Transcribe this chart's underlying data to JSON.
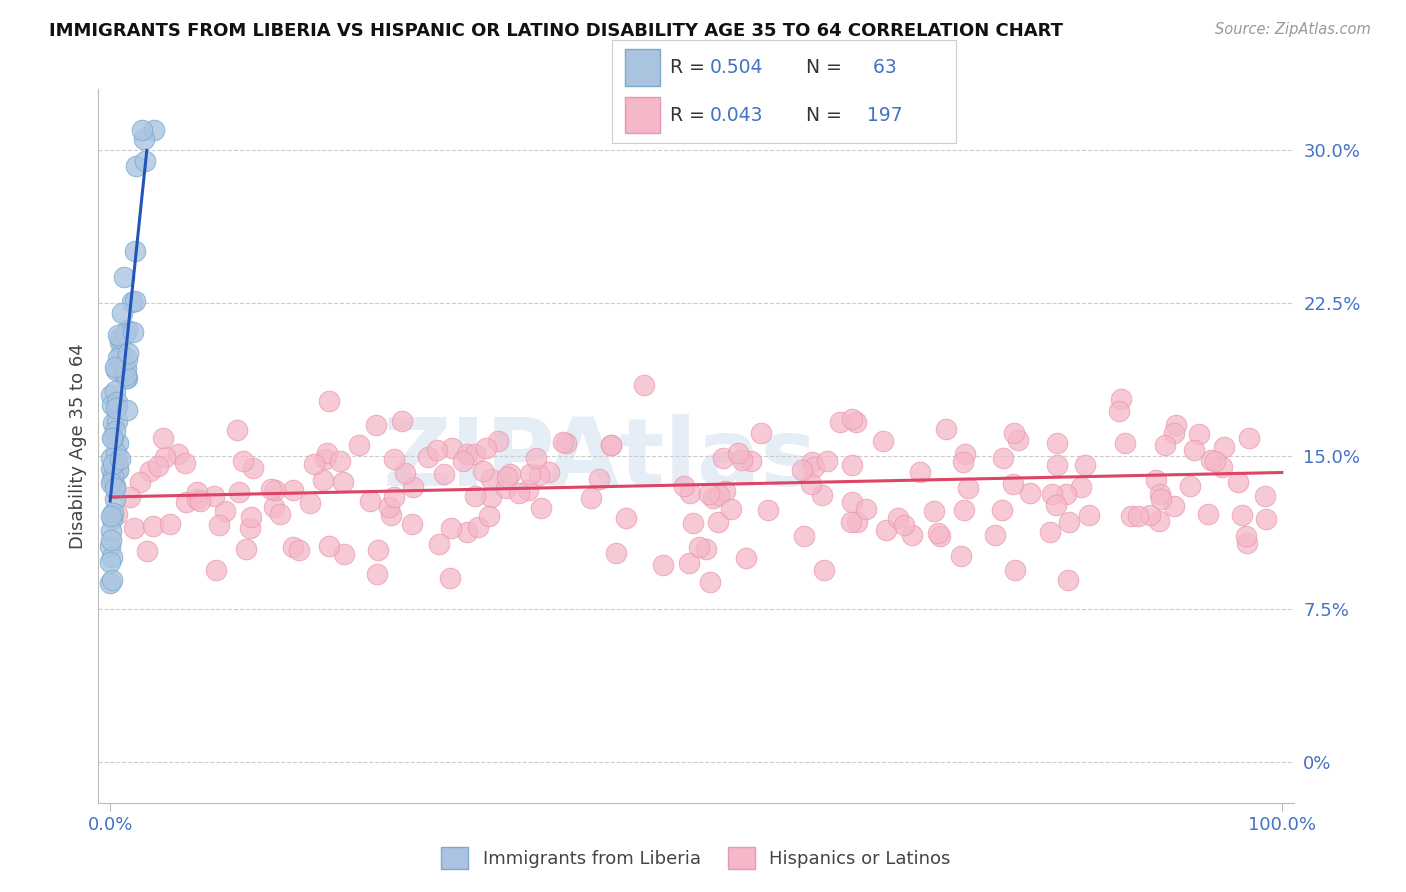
{
  "title": "IMMIGRANTS FROM LIBERIA VS HISPANIC OR LATINO DISABILITY AGE 35 TO 64 CORRELATION CHART",
  "source": "Source: ZipAtlas.com",
  "ylabel": "Disability Age 35 to 64",
  "xlim": [
    -1,
    101
  ],
  "ylim": [
    -2,
    33
  ],
  "yticks": [
    0,
    7.5,
    15.0,
    22.5,
    30.0
  ],
  "ytick_labels": [
    "0%",
    "7.5%",
    "15.0%",
    "22.5%",
    "30.0%"
  ],
  "xtick_labels_left": "0.0%",
  "xtick_labels_right": "100.0%",
  "blue_color": "#aac4e0",
  "blue_edge": "#7aaad0",
  "pink_color": "#f5b8c8",
  "pink_edge": "#e898b0",
  "blue_line_color": "#2255bb",
  "pink_line_color": "#dd4466",
  "watermark_text": "ZIPAtlas",
  "watermark_color": "#d0dff0",
  "background_color": "#ffffff",
  "grid_color": "#cccccc",
  "title_color": "#111111",
  "axis_label_color": "#4472c4",
  "ylabel_color": "#444444",
  "figsize": [
    14.06,
    8.92
  ],
  "dpi": 100,
  "legend_r1": "R = 0.504",
  "legend_n1": "N =  63",
  "legend_r2": "R = 0.043",
  "legend_n2": "N = 197",
  "legend_value_color": "#4472c4",
  "legend_text_color": "#333333",
  "blue_regression_slope": 5.5,
  "blue_regression_intercept": 12.8,
  "pink_regression_slope": 0.012,
  "pink_regression_intercept": 13.0,
  "pink_seed": 42,
  "blue_seed": 99,
  "pink_n": 197,
  "blue_n": 63
}
